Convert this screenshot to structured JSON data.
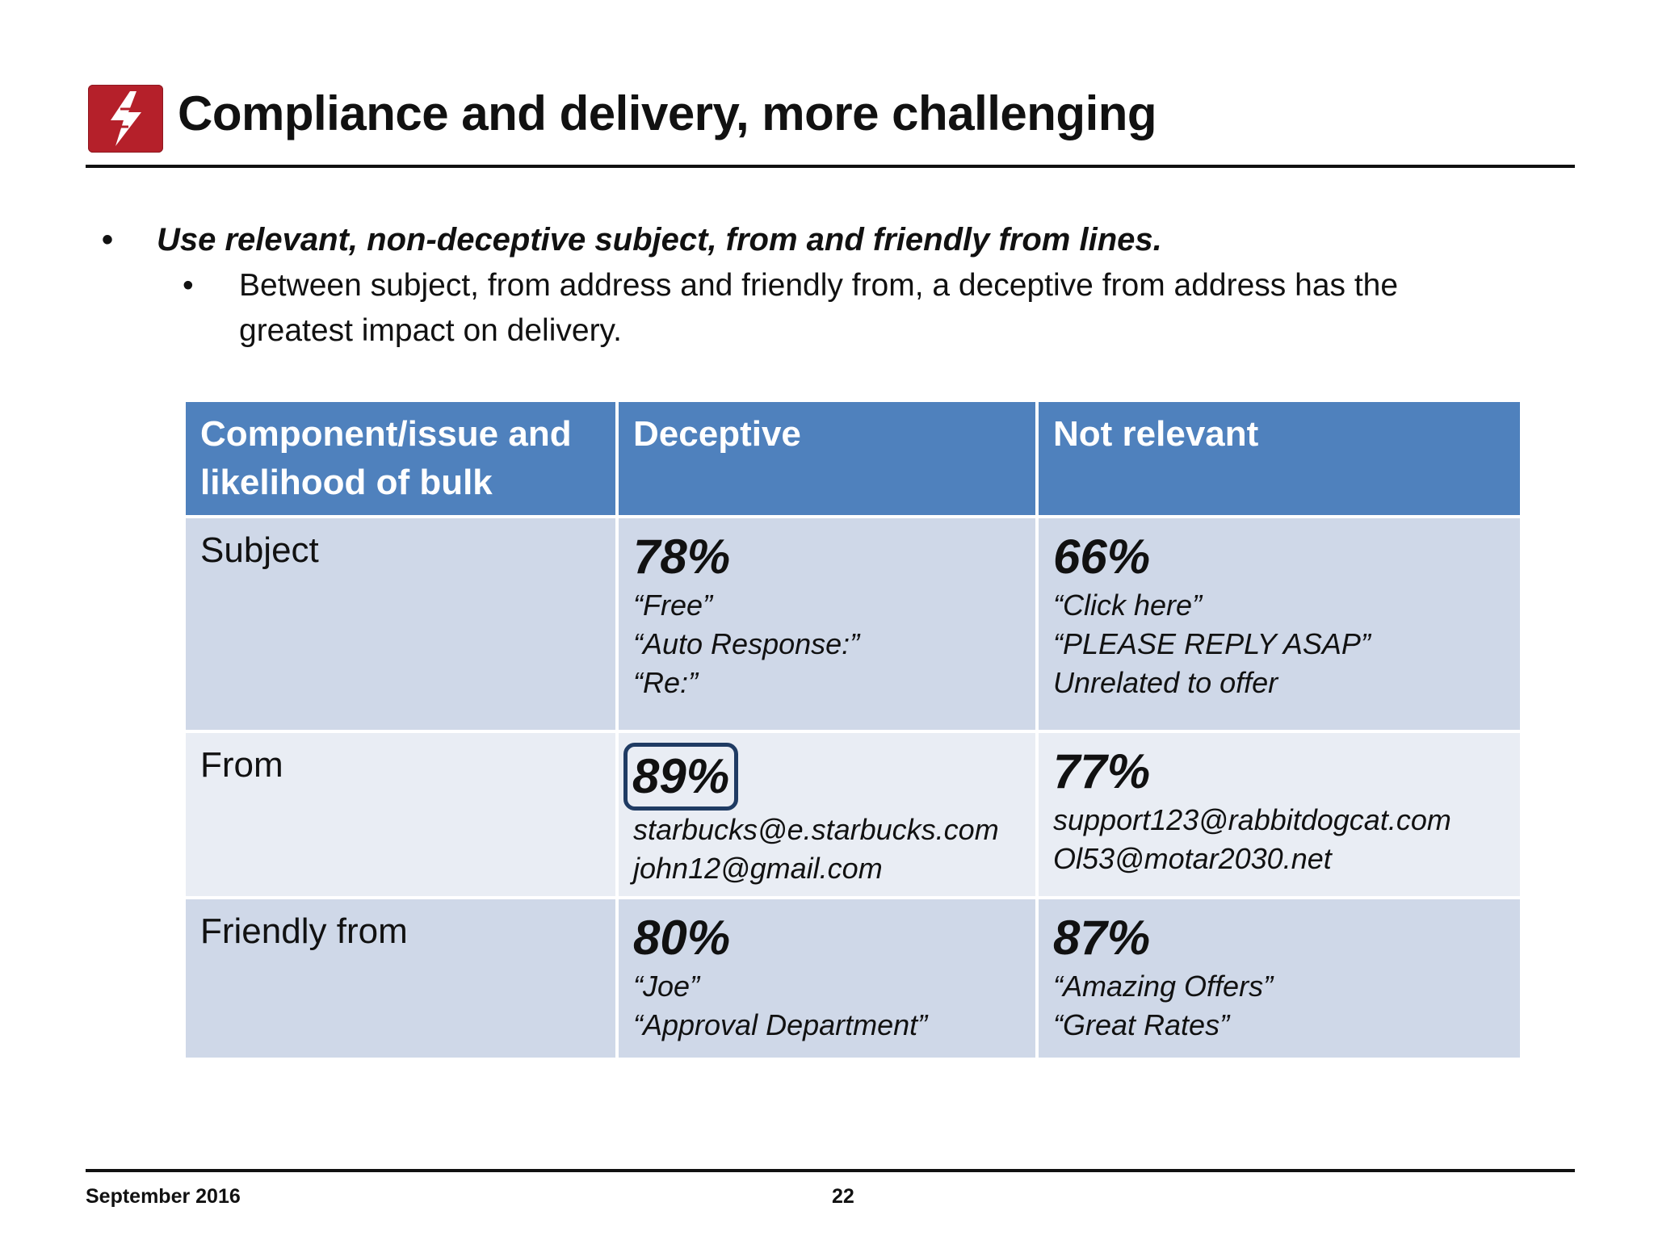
{
  "slide": {
    "title": "Compliance and delivery, more challenging",
    "logo_icon": "lightning-bolt-icon",
    "accent_color": "#b5202a",
    "header_color": "#4f81bd"
  },
  "bullets": {
    "main": "Use relevant, non-deceptive subject, from and friendly from lines.",
    "sub": "Between subject, from address and friendly from, a deceptive from address has the greatest impact on delivery."
  },
  "table": {
    "headers": [
      "Component/issue and likelihood of bulk",
      "Deceptive",
      "Not relevant"
    ],
    "rows": [
      {
        "component": "Subject",
        "deceptive_pct": "78%",
        "deceptive_examples": [
          "“Free”",
          "“Auto Response:”",
          "“Re:”"
        ],
        "not_relevant_pct": "66%",
        "not_relevant_examples": [
          "“Click here”",
          "“PLEASE REPLY ASAP”",
          "Unrelated to offer"
        ]
      },
      {
        "component": "From",
        "deceptive_pct": "89%",
        "deceptive_examples": [
          "starbucks@e.starbucks.com",
          "john12@gmail.com"
        ],
        "not_relevant_pct": "77%",
        "not_relevant_examples": [
          "support123@rabbitdogcat.com",
          "Ol53@motar2030.net"
        ]
      },
      {
        "component": "Friendly from",
        "deceptive_pct": "80%",
        "deceptive_examples": [
          "“Joe”",
          "“Approval Department”"
        ],
        "not_relevant_pct": "87%",
        "not_relevant_examples": [
          "“Amazing Offers”",
          "“Great Rates”"
        ]
      }
    ]
  },
  "footer": {
    "date": "September 2016",
    "page_number": "22"
  }
}
